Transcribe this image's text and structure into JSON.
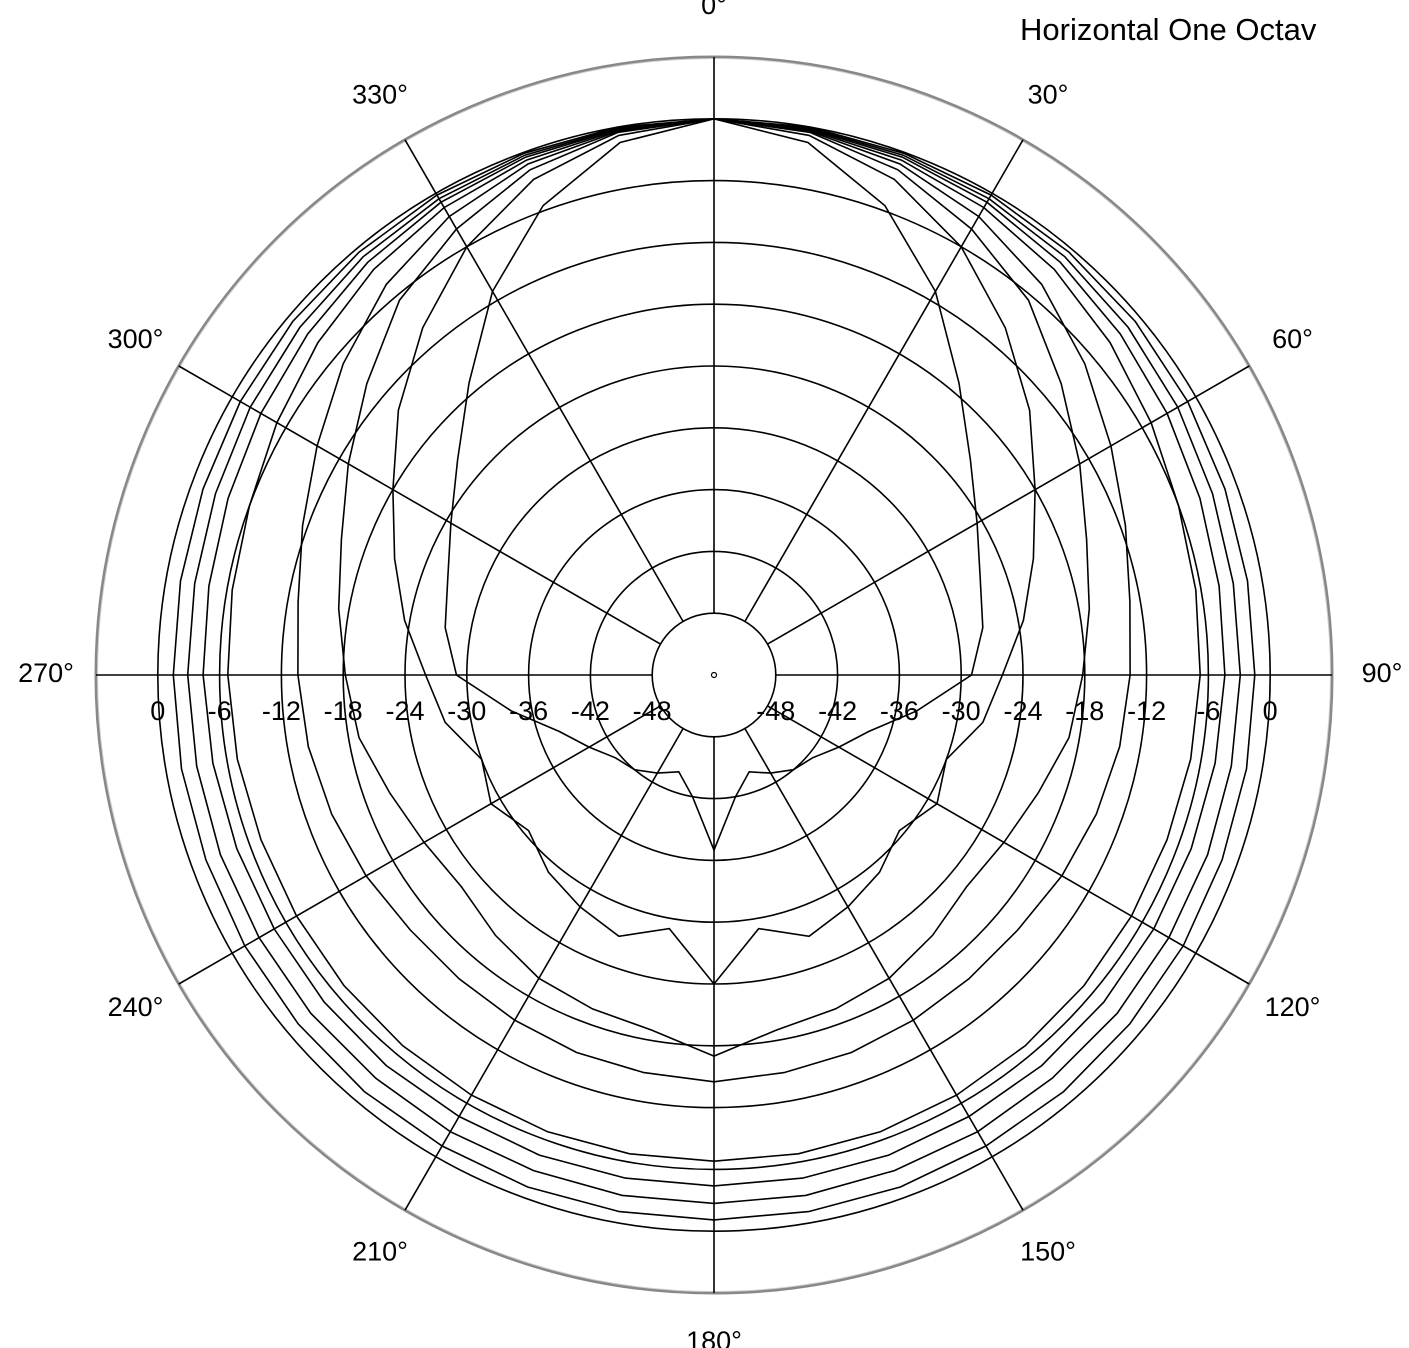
{
  "chart_data": {
    "type": "polar",
    "title": "Horizontal One Octav",
    "x": [
      0,
      10,
      20,
      30,
      40,
      50,
      60,
      70,
      80,
      90,
      100,
      110,
      120,
      130,
      140,
      150,
      160,
      170,
      180,
      190,
      200,
      210,
      220,
      230,
      240,
      250,
      260,
      270,
      280,
      290,
      300,
      310,
      320,
      330,
      340,
      350
    ],
    "rlim": [
      -54,
      6
    ],
    "rticks": [
      0,
      -6,
      -12,
      -18,
      -24,
      -30,
      -36,
      -42,
      -48
    ],
    "thetaticks": [
      {
        "value": 0,
        "label": "0°"
      },
      {
        "value": 30,
        "label": "30°"
      },
      {
        "value": 60,
        "label": "60°"
      },
      {
        "value": 90,
        "label": "90°"
      },
      {
        "value": 120,
        "label": "120°"
      },
      {
        "value": 150,
        "label": "150°"
      },
      {
        "value": 180,
        "label": "180°"
      },
      {
        "value": 210,
        "label": "210°"
      },
      {
        "value": 240,
        "label": "240°"
      },
      {
        "value": 270,
        "label": "270°"
      },
      {
        "value": 300,
        "label": "300°"
      },
      {
        "value": 330,
        "label": "330°"
      }
    ],
    "grid": true,
    "series": [
      {
        "color": "#000000",
        "values": [
          0,
          0,
          -0.1,
          -0.2,
          -0.4,
          -0.6,
          -0.9,
          -1.2,
          -1.4,
          -1.5,
          -1.5,
          -1.5,
          -1.4,
          -1.3,
          -1.2,
          -1.2,
          -1.1,
          -1.1,
          -1.1,
          -1.1,
          -1.1,
          -1.2,
          -1.2,
          -1.3,
          -1.4,
          -1.5,
          -1.5,
          -1.5,
          -1.4,
          -1.2,
          -0.9,
          -0.6,
          -0.4,
          -0.2,
          -0.1,
          0
        ]
      },
      {
        "color": "#000000",
        "values": [
          0,
          -0.1,
          -0.3,
          -0.6,
          -1,
          -1.5,
          -2,
          -2.5,
          -2.8,
          -2.9,
          -3,
          -3,
          -3,
          -2.9,
          -2.9,
          -2.8,
          -2.8,
          -2.7,
          -2.7,
          -2.7,
          -2.8,
          -2.8,
          -2.9,
          -2.9,
          -3,
          -3,
          -3,
          -2.9,
          -2.8,
          -2.5,
          -2,
          -1.5,
          -1,
          -0.6,
          -0.3,
          -0.1
        ]
      },
      {
        "color": "#000000",
        "values": [
          0,
          -0.2,
          -0.5,
          -1,
          -1.7,
          -2.5,
          -3.2,
          -3.8,
          -4.2,
          -4.4,
          -4.6,
          -4.7,
          -4.7,
          -4.6,
          -4.5,
          -4.5,
          -4.4,
          -4.4,
          -4.4,
          -4.4,
          -4.4,
          -4.5,
          -4.5,
          -4.6,
          -4.7,
          -4.7,
          -4.6,
          -4.4,
          -4.2,
          -3.8,
          -3.2,
          -2.5,
          -1.7,
          -1,
          -0.5,
          -0.2
        ]
      },
      {
        "color": "#000000",
        "values": [
          0,
          -0.3,
          -0.8,
          -1.6,
          -2.6,
          -3.8,
          -5,
          -6,
          -6.5,
          -6.8,
          -7,
          -7.2,
          -7.2,
          -7.1,
          -7,
          -6.9,
          -6.8,
          -6.8,
          -6.8,
          -6.8,
          -6.8,
          -6.9,
          -7,
          -7.1,
          -7.2,
          -7.2,
          -7,
          -6.8,
          -6.5,
          -6,
          -5,
          -3.8,
          -2.6,
          -1.6,
          -0.8,
          -0.3
        ]
      },
      {
        "color": "#000000",
        "values": [
          0,
          -0.4,
          -1.2,
          -2.6,
          -4.5,
          -7,
          -9.5,
          -11.5,
          -13,
          -13.6,
          -14,
          -14.5,
          -15,
          -15.5,
          -15.5,
          -15.3,
          -15,
          -14.8,
          -14.5,
          -14.8,
          -15,
          -15.3,
          -15.5,
          -15.5,
          -15,
          -14.5,
          -14,
          -13.6,
          -13,
          -11.5,
          -9.5,
          -7,
          -4.5,
          -2.6,
          -1.2,
          -0.4
        ]
      },
      {
        "color": "#000000",
        "values": [
          0,
          -0.5,
          -1.8,
          -4,
          -6.5,
          -10,
          -13,
          -15.5,
          -17,
          -18.2,
          -19,
          -20.5,
          -21.5,
          -22,
          -21,
          -20,
          -19.5,
          -19,
          -17,
          -19,
          -19.5,
          -20,
          -21,
          -22,
          -21.5,
          -20.5,
          -19,
          -18.2,
          -17,
          -15.5,
          -13,
          -10,
          -6.5,
          -4,
          -1.8,
          -0.5
        ]
      },
      {
        "color": "#000000",
        "values": [
          0,
          -0.8,
          -2.8,
          -6,
          -10,
          -14,
          -18,
          -21,
          -23.5,
          -26,
          -27.5,
          -30,
          -29,
          -30.5,
          -29,
          -28,
          -27,
          -29,
          -24,
          -29,
          -27,
          -28,
          -29,
          -30.5,
          -29,
          -30,
          -27.5,
          -26,
          -23.5,
          -21,
          -18,
          -14,
          -10,
          -6,
          -2.8,
          -0.8
        ]
      },
      {
        "color": "#000000",
        "values": [
          0,
          -1.5,
          -5.5,
          -11,
          -17,
          -21.5,
          -24.5,
          -26.5,
          -27.5,
          -29,
          -34,
          -38,
          -40,
          -41.5,
          -42,
          -43,
          -44,
          -42,
          -37,
          -42,
          -44,
          -43,
          -42,
          -41.5,
          -40,
          -38,
          -34,
          -29,
          -27.5,
          -26.5,
          -24.5,
          -21.5,
          -17,
          -11,
          -5.5,
          -1.5
        ]
      }
    ]
  }
}
